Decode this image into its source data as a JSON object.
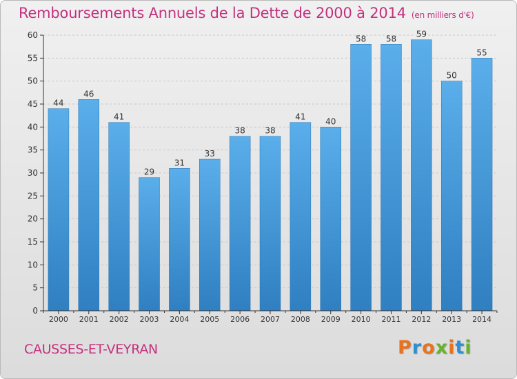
{
  "chart_data": {
    "type": "bar",
    "title": "Remboursements Annuels de la Dette de 2000 à 2014",
    "unit": "(en milliers d'€)",
    "xlabel": "",
    "ylabel": "",
    "categories": [
      "2000",
      "2001",
      "2002",
      "2003",
      "2004",
      "2005",
      "2006",
      "2007",
      "2008",
      "2009",
      "2010",
      "2011",
      "2012",
      "2013",
      "2014"
    ],
    "values": [
      44,
      46,
      41,
      29,
      31,
      33,
      38,
      38,
      41,
      40,
      58,
      58,
      59,
      50,
      55
    ],
    "ylim": [
      0,
      60
    ],
    "yticks": [
      0,
      5,
      10,
      15,
      20,
      25,
      30,
      35,
      40,
      45,
      50,
      55,
      60
    ],
    "grid": "horizontal-dashed"
  },
  "footer": {
    "commune": "CAUSSES-ET-VEYRAN",
    "logo_text": "Proxiti",
    "logo_colors": [
      "#e8731f",
      "#2f8fd3",
      "#e8731f",
      "#66b32e",
      "#e8731f",
      "#2f8fd3",
      "#66b32e"
    ]
  },
  "colors": {
    "title": "#c4307e",
    "bar_light": "#5aaeea",
    "bar_dark": "#2f7fc1",
    "axis": "#333333",
    "grid": "#c8c8c8"
  }
}
